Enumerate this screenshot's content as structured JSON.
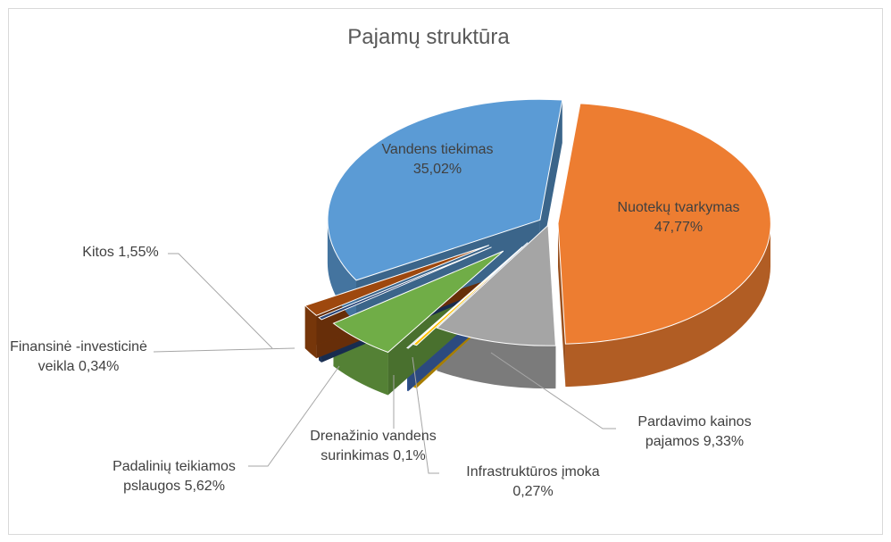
{
  "chart_data": {
    "type": "pie3d",
    "title": "Pajamų struktūra",
    "categories": [
      "Nuotekų tvarkymas",
      "Pardavimo kainos pajamos",
      "Infrastruktūros įmoka",
      "Drenažinio vandens surinkimas",
      "Padalinių teikiamos pslaugos",
      "Finansinė -investicinė veikla",
      "Kitos",
      "Vandens tiekimas"
    ],
    "values": [
      47.77,
      9.33,
      0.27,
      0.1,
      5.62,
      0.34,
      1.55,
      35.02
    ],
    "value_labels": [
      "47,77%",
      "9,33%",
      "0,27%",
      "0,1%",
      "5,62%",
      "0,34%",
      "1,55%",
      "35,02%"
    ],
    "colors": [
      "#ed7d31",
      "#a5a5a5",
      "#ffc000",
      "#4472c4",
      "#70ad47",
      "#264478",
      "#9e480e",
      "#5b9bd5"
    ]
  }
}
